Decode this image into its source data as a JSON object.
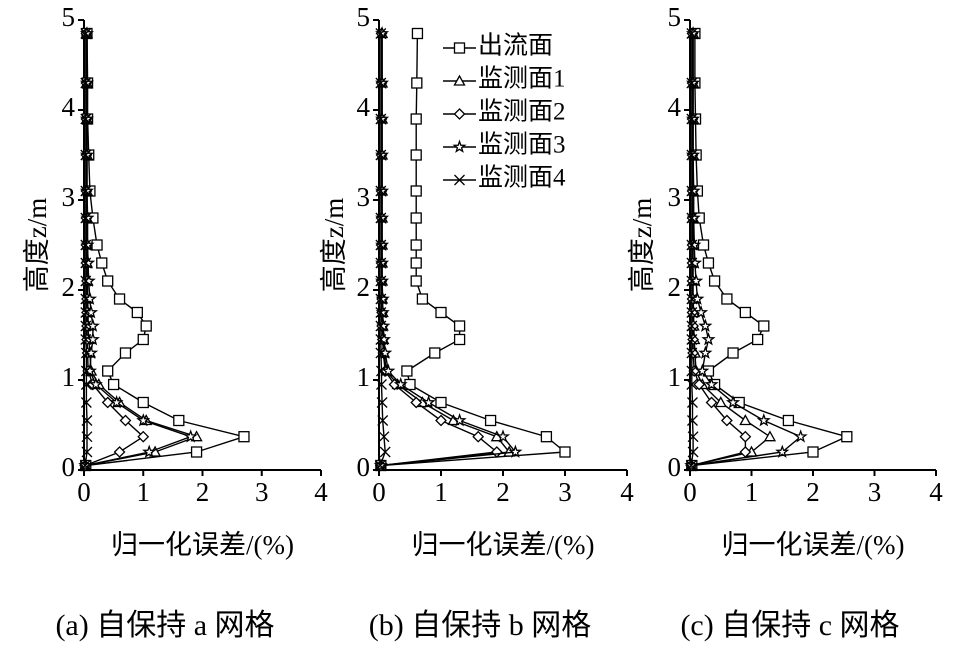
{
  "chart_data": [
    {
      "type": "line",
      "color": "#000000",
      "caption": "(a) 自保持 a 网格",
      "xlabel": "归一化误差/(%)",
      "ylabel": "高度z/m",
      "xlim": [
        0,
        4
      ],
      "ylim": [
        0,
        5
      ],
      "xticks": [
        0,
        1,
        2,
        3,
        4
      ],
      "yticks": [
        0,
        1,
        2,
        3,
        4,
        5
      ],
      "y": [
        0.05,
        0.2,
        0.37,
        0.55,
        0.75,
        0.95,
        1.1,
        1.3,
        1.45,
        1.6,
        1.75,
        1.9,
        2.1,
        2.3,
        2.5,
        2.8,
        3.1,
        3.5,
        3.9,
        4.3,
        4.85
      ],
      "series": [
        {
          "marker": "square",
          "values": [
            0.03,
            1.9,
            2.7,
            1.6,
            1.0,
            0.5,
            0.4,
            0.7,
            1.0,
            1.05,
            0.9,
            0.6,
            0.4,
            0.3,
            0.22,
            0.15,
            0.1,
            0.08,
            0.06,
            0.06,
            0.05
          ]
        },
        {
          "marker": "triangle",
          "values": [
            0.02,
            1.2,
            1.9,
            1.05,
            0.6,
            0.25,
            0.12,
            0.1,
            0.08,
            0.07,
            0.07,
            0.06,
            0.06,
            0.05,
            0.05,
            0.05,
            0.05,
            0.05,
            0.05,
            0.05,
            0.05
          ]
        },
        {
          "marker": "diamond",
          "values": [
            0.02,
            0.6,
            1.0,
            0.7,
            0.4,
            0.15,
            0.07,
            0.06,
            0.05,
            0.05,
            0.05,
            0.05,
            0.05,
            0.04,
            0.04,
            0.04,
            0.04,
            0.04,
            0.04,
            0.04,
            0.04
          ]
        },
        {
          "marker": "star",
          "values": [
            0.02,
            1.1,
            1.8,
            1.0,
            0.55,
            0.2,
            0.1,
            0.12,
            0.15,
            0.15,
            0.12,
            0.1,
            0.08,
            0.07,
            0.06,
            0.06,
            0.05,
            0.05,
            0.05,
            0.05,
            0.05
          ]
        },
        {
          "marker": "cross",
          "values": [
            0.02,
            0.05,
            0.05,
            0.05,
            0.04,
            0.04,
            0.04,
            0.04,
            0.03,
            0.03,
            0.03,
            0.03,
            0.03,
            0.03,
            0.03,
            0.03,
            0.03,
            0.03,
            0.03,
            0.03,
            0.03
          ]
        }
      ]
    },
    {
      "type": "line",
      "color": "#000000",
      "caption": "(b) 自保持 b 网格",
      "xlabel": "归一化误差/(%)",
      "ylabel": "高度z/m",
      "xlim": [
        0,
        4
      ],
      "ylim": [
        0,
        5
      ],
      "xticks": [
        0,
        1,
        2,
        3,
        4
      ],
      "yticks": [
        0,
        1,
        2,
        3,
        4,
        5
      ],
      "y": [
        0.05,
        0.2,
        0.37,
        0.55,
        0.75,
        0.95,
        1.1,
        1.3,
        1.45,
        1.6,
        1.75,
        1.9,
        2.1,
        2.3,
        2.5,
        2.8,
        3.1,
        3.5,
        3.9,
        4.3,
        4.85
      ],
      "series": [
        {
          "name": "出流面",
          "marker": "square",
          "values": [
            0.03,
            3.0,
            2.7,
            1.8,
            1.0,
            0.5,
            0.45,
            0.9,
            1.3,
            1.3,
            1.0,
            0.7,
            0.6,
            0.6,
            0.6,
            0.6,
            0.6,
            0.6,
            0.6,
            0.61,
            0.62
          ]
        },
        {
          "name": "监测面1",
          "marker": "triangle",
          "values": [
            0.03,
            2.1,
            1.9,
            1.2,
            0.7,
            0.3,
            0.12,
            0.08,
            0.07,
            0.06,
            0.06,
            0.05,
            0.05,
            0.05,
            0.05,
            0.05,
            0.05,
            0.05,
            0.05,
            0.05,
            0.05
          ]
        },
        {
          "name": "监测面2",
          "marker": "diamond",
          "values": [
            0.03,
            1.9,
            1.6,
            1.0,
            0.6,
            0.25,
            0.1,
            0.07,
            0.06,
            0.05,
            0.05,
            0.05,
            0.04,
            0.04,
            0.04,
            0.04,
            0.04,
            0.04,
            0.04,
            0.04,
            0.04
          ]
        },
        {
          "name": "监测面3",
          "marker": "star",
          "values": [
            0.03,
            2.2,
            2.0,
            1.3,
            0.8,
            0.35,
            0.15,
            0.1,
            0.08,
            0.07,
            0.06,
            0.06,
            0.05,
            0.05,
            0.05,
            0.05,
            0.05,
            0.05,
            0.05,
            0.05,
            0.05
          ]
        },
        {
          "name": "监测面4",
          "marker": "cross",
          "values": [
            0.02,
            0.1,
            0.08,
            0.06,
            0.05,
            0.04,
            0.04,
            0.03,
            0.03,
            0.03,
            0.03,
            0.03,
            0.03,
            0.03,
            0.03,
            0.03,
            0.03,
            0.03,
            0.03,
            0.03,
            0.03
          ]
        }
      ]
    },
    {
      "type": "line",
      "color": "#000000",
      "caption": "(c) 自保持 c 网格",
      "xlabel": "归一化误差/(%)",
      "ylabel": "高度z/m",
      "xlim": [
        0,
        4
      ],
      "ylim": [
        0,
        5
      ],
      "xticks": [
        0,
        1,
        2,
        3,
        4
      ],
      "yticks": [
        0,
        1,
        2,
        3,
        4,
        5
      ],
      "y": [
        0.05,
        0.2,
        0.37,
        0.55,
        0.75,
        0.95,
        1.1,
        1.3,
        1.45,
        1.6,
        1.75,
        1.9,
        2.1,
        2.3,
        2.5,
        2.8,
        3.1,
        3.5,
        3.9,
        4.3,
        4.85
      ],
      "series": [
        {
          "marker": "square",
          "values": [
            0.03,
            2.0,
            2.55,
            1.6,
            0.8,
            0.4,
            0.3,
            0.7,
            1.1,
            1.2,
            0.9,
            0.6,
            0.4,
            0.3,
            0.22,
            0.15,
            0.12,
            0.1,
            0.09,
            0.08,
            0.08
          ]
        },
        {
          "marker": "triangle",
          "values": [
            0.02,
            1.0,
            1.3,
            0.9,
            0.5,
            0.2,
            0.1,
            0.08,
            0.07,
            0.06,
            0.06,
            0.05,
            0.05,
            0.05,
            0.05,
            0.05,
            0.05,
            0.05,
            0.05,
            0.05,
            0.05
          ]
        },
        {
          "marker": "diamond",
          "values": [
            0.02,
            0.9,
            0.9,
            0.6,
            0.35,
            0.15,
            0.07,
            0.05,
            0.05,
            0.05,
            0.04,
            0.04,
            0.04,
            0.04,
            0.04,
            0.04,
            0.04,
            0.04,
            0.04,
            0.04,
            0.04
          ]
        },
        {
          "marker": "star",
          "values": [
            0.02,
            1.5,
            1.8,
            1.2,
            0.7,
            0.35,
            0.2,
            0.25,
            0.3,
            0.25,
            0.18,
            0.12,
            0.1,
            0.08,
            0.07,
            0.06,
            0.06,
            0.05,
            0.05,
            0.05,
            0.05
          ]
        },
        {
          "marker": "cross",
          "values": [
            0.02,
            0.05,
            0.05,
            0.04,
            0.04,
            0.03,
            0.03,
            0.03,
            0.03,
            0.03,
            0.03,
            0.03,
            0.03,
            0.03,
            0.03,
            0.03,
            0.03,
            0.03,
            0.03,
            0.03,
            0.03
          ]
        }
      ]
    }
  ]
}
